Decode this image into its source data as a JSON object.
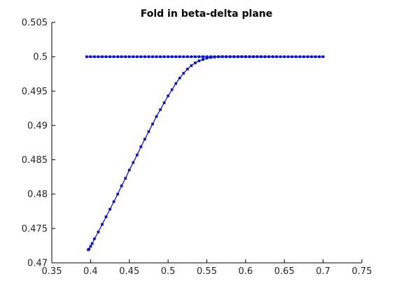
{
  "chart_data": {
    "type": "line",
    "title": "Fold in beta-delta plane",
    "xlabel": "",
    "ylabel": "",
    "xlim": [
      0.35,
      0.75
    ],
    "ylim": [
      0.47,
      0.505
    ],
    "xticks": [
      0.35,
      0.4,
      0.45,
      0.5,
      0.55,
      0.6,
      0.65,
      0.7,
      0.75
    ],
    "xtick_labels": [
      "0.35",
      "0.4",
      "0.45",
      "0.5",
      "0.55",
      "0.6",
      "0.65",
      "0.7",
      "0.75"
    ],
    "yticks": [
      0.47,
      0.475,
      0.48,
      0.485,
      0.49,
      0.495,
      0.5,
      0.505
    ],
    "ytick_labels": [
      "0.47",
      "0.475",
      "0.48",
      "0.485",
      "0.49",
      "0.495",
      "0.5",
      "0.505"
    ],
    "grid": false,
    "legend": false,
    "colors": {
      "line": "#0000ff",
      "marker_edge": "#1a3a8a",
      "marker_highlight": "#22aa66",
      "axis": "#000000"
    },
    "series": [
      {
        "values_x": [
          0.397,
          0.398,
          0.4,
          0.402,
          0.405,
          0.41,
          0.415,
          0.42,
          0.425,
          0.43,
          0.435,
          0.44,
          0.445,
          0.45,
          0.455,
          0.46,
          0.465,
          0.47,
          0.475,
          0.48,
          0.485,
          0.49,
          0.495,
          0.5,
          0.505,
          0.51,
          0.515,
          0.52,
          0.525,
          0.53,
          0.535,
          0.54,
          0.545,
          0.55,
          0.555,
          0.56,
          0.565,
          0.57,
          0.575,
          0.58,
          0.585,
          0.59,
          0.595,
          0.6,
          0.605,
          0.61,
          0.615,
          0.62,
          0.625,
          0.63,
          0.635,
          0.64
        ],
        "values_y": [
          0.4719,
          0.472,
          0.4724,
          0.4728,
          0.4735,
          0.4745,
          0.4756,
          0.4767,
          0.4778,
          0.4789,
          0.48,
          0.4812,
          0.4823,
          0.4835,
          0.4846,
          0.4857,
          0.4869,
          0.488,
          0.4891,
          0.4902,
          0.4913,
          0.4923,
          0.4933,
          0.4943,
          0.4952,
          0.4961,
          0.4969,
          0.4976,
          0.4982,
          0.4987,
          0.4991,
          0.4994,
          0.4996,
          0.4998,
          0.4999,
          0.49995,
          0.5,
          0.5,
          0.5,
          0.5,
          0.5,
          0.5,
          0.5,
          0.5,
          0.5,
          0.5,
          0.5,
          0.5,
          0.5,
          0.5,
          0.5,
          0.5
        ]
      },
      {
        "values_x": [
          0.395,
          0.4,
          0.405,
          0.41,
          0.415,
          0.42,
          0.425,
          0.43,
          0.435,
          0.44,
          0.445,
          0.45,
          0.455,
          0.46,
          0.465,
          0.47,
          0.475,
          0.48,
          0.485,
          0.49,
          0.495,
          0.5,
          0.505,
          0.51,
          0.515,
          0.52,
          0.525,
          0.53,
          0.535,
          0.54,
          0.545,
          0.55,
          0.555,
          0.56,
          0.565,
          0.57,
          0.575,
          0.58,
          0.585,
          0.59,
          0.595,
          0.6,
          0.605,
          0.61,
          0.615,
          0.62,
          0.625,
          0.63,
          0.635,
          0.64,
          0.645,
          0.65,
          0.655,
          0.66,
          0.665,
          0.67,
          0.675,
          0.68,
          0.685,
          0.69,
          0.695,
          0.7
        ],
        "values_y": [
          0.5,
          0.5,
          0.5,
          0.5,
          0.5,
          0.5,
          0.5,
          0.5,
          0.5,
          0.5,
          0.5,
          0.5,
          0.5,
          0.5,
          0.5,
          0.5,
          0.5,
          0.5,
          0.5,
          0.5,
          0.5,
          0.5,
          0.5,
          0.5,
          0.5,
          0.5,
          0.5,
          0.5,
          0.5,
          0.5,
          0.5,
          0.5,
          0.5,
          0.5,
          0.5,
          0.5,
          0.5,
          0.5,
          0.5,
          0.5,
          0.5,
          0.5,
          0.5,
          0.5,
          0.5,
          0.5,
          0.5,
          0.5,
          0.5,
          0.5,
          0.5,
          0.5,
          0.5,
          0.5,
          0.5,
          0.5,
          0.5,
          0.5,
          0.5,
          0.5,
          0.5,
          0.5
        ]
      }
    ]
  }
}
